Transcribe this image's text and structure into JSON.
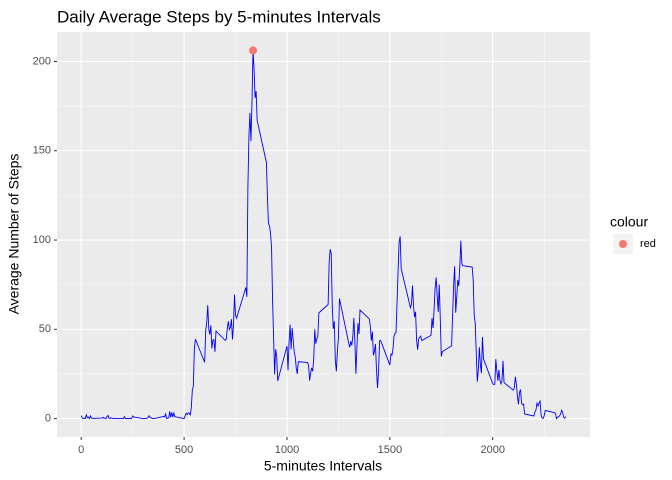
{
  "chart_data": {
    "type": "line",
    "title": "Daily Average Steps by 5-minutes Intervals",
    "x_label": "5-minutes Intervals",
    "y_label": "Average Number of Steps",
    "xlim": [
      -117.75,
      2472.75
    ],
    "ylim": [
      -10.3,
      216.5
    ],
    "xticks": [
      0,
      500,
      1000,
      1500,
      2000
    ],
    "yticks": [
      0,
      50,
      100,
      150,
      200
    ],
    "grid": true,
    "series": [
      {
        "color": "#0000ff",
        "x": [
          0,
          5,
          10,
          15,
          20,
          25,
          30,
          35,
          40,
          45,
          50,
          55,
          100,
          105,
          110,
          115,
          120,
          125,
          130,
          135,
          140,
          145,
          150,
          155,
          200,
          205,
          210,
          215,
          220,
          225,
          230,
          235,
          240,
          245,
          250,
          255,
          300,
          305,
          310,
          315,
          320,
          325,
          330,
          335,
          340,
          345,
          350,
          355,
          400,
          405,
          410,
          415,
          420,
          425,
          430,
          435,
          440,
          445,
          450,
          455,
          500,
          505,
          510,
          515,
          520,
          525,
          530,
          535,
          540,
          545,
          550,
          555,
          600,
          605,
          610,
          615,
          620,
          625,
          630,
          635,
          640,
          645,
          650,
          655,
          700,
          705,
          710,
          715,
          720,
          725,
          730,
          735,
          740,
          745,
          750,
          755,
          800,
          805,
          810,
          815,
          820,
          825,
          830,
          835,
          840,
          845,
          850,
          855,
          900,
          905,
          910,
          915,
          920,
          925,
          930,
          935,
          940,
          945,
          950,
          955,
          1000,
          1005,
          1010,
          1015,
          1020,
          1025,
          1030,
          1035,
          1040,
          1045,
          1050,
          1055,
          1100,
          1105,
          1110,
          1115,
          1120,
          1125,
          1130,
          1135,
          1140,
          1145,
          1150,
          1155,
          1200,
          1205,
          1210,
          1215,
          1220,
          1225,
          1230,
          1235,
          1240,
          1245,
          1250,
          1255,
          1300,
          1305,
          1310,
          1315,
          1320,
          1325,
          1330,
          1335,
          1340,
          1345,
          1350,
          1355,
          1400,
          1405,
          1410,
          1415,
          1420,
          1425,
          1430,
          1435,
          1440,
          1445,
          1450,
          1455,
          1500,
          1505,
          1510,
          1515,
          1520,
          1525,
          1530,
          1535,
          1540,
          1545,
          1550,
          1555,
          1600,
          1605,
          1610,
          1615,
          1620,
          1625,
          1630,
          1635,
          1640,
          1645,
          1650,
          1655,
          1700,
          1705,
          1710,
          1715,
          1720,
          1725,
          1730,
          1735,
          1740,
          1745,
          1750,
          1755,
          1800,
          1805,
          1810,
          1815,
          1820,
          1825,
          1830,
          1835,
          1840,
          1845,
          1850,
          1855,
          1900,
          1905,
          1910,
          1915,
          1920,
          1925,
          1930,
          1935,
          1940,
          1945,
          1950,
          1955,
          2000,
          2005,
          2010,
          2015,
          2020,
          2025,
          2030,
          2035,
          2040,
          2045,
          2050,
          2055,
          2100,
          2105,
          2110,
          2115,
          2120,
          2125,
          2130,
          2135,
          2140,
          2145,
          2150,
          2155,
          2200,
          2205,
          2210,
          2215,
          2220,
          2225,
          2230,
          2235,
          2240,
          2245,
          2250,
          2255,
          2300,
          2305,
          2310,
          2315,
          2320,
          2325,
          2330,
          2335,
          2340,
          2345,
          2350,
          2355
        ],
        "values": [
          1.7,
          0.3,
          0.1,
          0.2,
          0.1,
          2.1,
          0.5,
          0.9,
          0,
          1.5,
          0.3,
          0.1,
          0.3,
          0.7,
          0.2,
          0.3,
          0,
          1.1,
          1.8,
          0.2,
          0.2,
          0.4,
          0.3,
          0,
          0,
          0,
          1.1,
          0,
          0,
          0.1,
          0,
          0.2,
          0,
          0,
          1.5,
          0.9,
          0,
          0,
          0,
          0,
          0.2,
          0.6,
          1.6,
          0.6,
          0.5,
          0.1,
          0,
          0,
          1.2,
          0.9,
          2.6,
          0,
          0.3,
          0.4,
          4.1,
          0.7,
          3.5,
          0.8,
          3.1,
          1.1,
          0,
          1.6,
          3,
          2.2,
          3.3,
          3,
          2.1,
          6.1,
          16,
          18.3,
          39.5,
          44.5,
          31.5,
          49.3,
          53.8,
          63.5,
          50,
          47.1,
          52.2,
          39.3,
          44,
          44.2,
          37.4,
          49,
          43.8,
          44.4,
          50.5,
          54.5,
          49.9,
          51,
          55.7,
          44.3,
          52.3,
          69.5,
          57.8,
          56.2,
          73.4,
          68.2,
          129.4,
          157.5,
          171.2,
          155.4,
          177.3,
          206.2,
          195.9,
          179.6,
          183.4,
          167,
          143.5,
          124,
          109.1,
          108.1,
          103.7,
          95.9,
          66.2,
          45.2,
          24.8,
          38.8,
          35,
          21.1,
          40.6,
          27,
          42.4,
          52.7,
          38.9,
          50.8,
          44.3,
          37.4,
          34.7,
          28.3,
          25.1,
          31.9,
          31.4,
          29.7,
          21.3,
          25.5,
          28.4,
          26.5,
          33.4,
          50,
          42,
          44.6,
          46,
          59.2,
          63.9,
          87.7,
          94.8,
          92.8,
          63.4,
          50.2,
          54.5,
          32.4,
          26.5,
          37.7,
          45.1,
          67.3,
          42.3,
          39.9,
          43.3,
          41,
          46.2,
          56.4,
          42.8,
          25.1,
          40,
          53.5,
          47.3,
          60.8,
          55.8,
          52,
          43.6,
          48.7,
          35.5,
          37.5,
          41.8,
          27.5,
          17.1,
          26.1,
          43.6,
          43.8,
          30,
          36.1,
          35.5,
          38.8,
          46,
          47.8,
          48.1,
          65.3,
          82.9,
          98.7,
          102.1,
          84,
          62.1,
          64.1,
          74.5,
          63.2,
          56.9,
          59.8,
          43.9,
          38.6,
          44.7,
          45.5,
          46.2,
          43.7,
          46.6,
          56.3,
          50.7,
          61.2,
          73.4,
          79.1,
          68.9,
          59.7,
          75.1,
          56.5,
          34.8,
          37.5,
          40.7,
          58,
          74.7,
          85.3,
          59.3,
          67.8,
          77.7,
          74.2,
          85.3,
          99.5,
          86.6,
          85.6,
          84.9,
          77.8,
          58,
          53.4,
          36.3,
          20.7,
          27.4,
          40,
          30.2,
          25.5,
          45.7,
          33.5,
          19.6,
          19,
          19.3,
          33.3,
          26.8,
          21.2,
          27.3,
          21.3,
          19.5,
          21.3,
          32.3,
          20.2,
          15.9,
          17.2,
          23.5,
          19.2,
          12.5,
          8,
          14.7,
          16.3,
          8.7,
          7.8,
          8.1,
          2.6,
          1.5,
          3.7,
          4.8,
          8.5,
          7.1,
          8.7,
          9.8,
          2.2,
          0.3,
          0.1,
          1.6,
          4.6,
          3.3,
          2.8,
          0,
          0.8,
          1,
          1.6,
          2.6,
          4.7,
          3.3,
          0.6,
          0.2,
          1.1
        ]
      },
      {
        "type": "scatter",
        "name": "red",
        "color": "#f8766d",
        "x": [
          835
        ],
        "values": [
          206.2
        ]
      }
    ],
    "legend_title": "colour"
  }
}
